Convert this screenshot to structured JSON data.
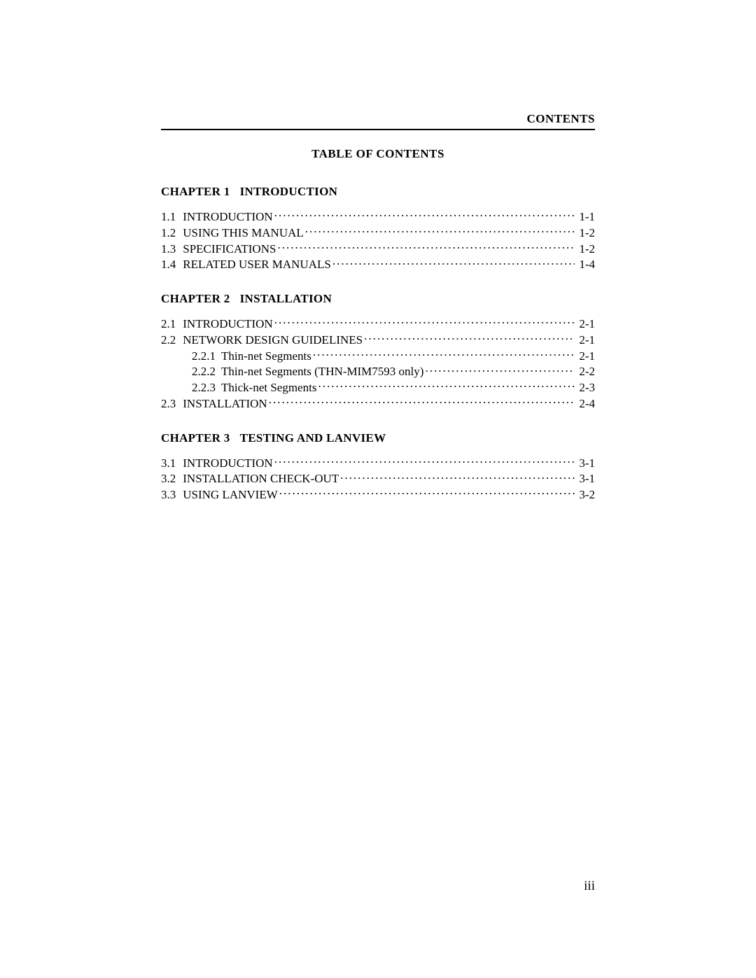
{
  "header_label": "CONTENTS",
  "toc_title": "TABLE OF CONTENTS",
  "page_number": "iii",
  "chapters": [
    {
      "heading_prefix": "CHAPTER 1",
      "heading_title": "INTRODUCTION",
      "entries": [
        {
          "level": 1,
          "num": "1.1",
          "title": "INTRODUCTION",
          "page": "1-1"
        },
        {
          "level": 1,
          "num": "1.2",
          "title": "USING THIS MANUAL",
          "page": "1-2"
        },
        {
          "level": 1,
          "num": "1.3",
          "title": "SPECIFICATIONS",
          "page": "1-2"
        },
        {
          "level": 1,
          "num": "1.4",
          "title": "RELATED USER MANUALS",
          "page": "1-4"
        }
      ]
    },
    {
      "heading_prefix": "CHAPTER 2",
      "heading_title": "INSTALLATION",
      "entries": [
        {
          "level": 1,
          "num": "2.1",
          "title": "INTRODUCTION",
          "page": "2-1"
        },
        {
          "level": 1,
          "num": "2.2",
          "title": "NETWORK DESIGN GUIDELINES",
          "page": "2-1"
        },
        {
          "level": 2,
          "num": "2.2.1",
          "title": "Thin-net Segments",
          "page": "2-1"
        },
        {
          "level": 2,
          "num": "2.2.2",
          "title": "Thin-net Segments (THN-MIM7593 only)",
          "page": "2-2"
        },
        {
          "level": 2,
          "num": "2.2.3",
          "title": "Thick-net Segments",
          "page": "2-3"
        },
        {
          "level": 1,
          "num": "2.3",
          "title": "INSTALLATION",
          "page": "2-4"
        }
      ]
    },
    {
      "heading_prefix": "CHAPTER 3",
      "heading_title": "TESTING AND LANVIEW",
      "entries": [
        {
          "level": 1,
          "num": "3.1",
          "title": "INTRODUCTION",
          "page": "3-1"
        },
        {
          "level": 1,
          "num": "3.2",
          "title": "INSTALLATION CHECK-OUT",
          "page": "3-1"
        },
        {
          "level": 1,
          "num": "3.3",
          "title": "USING LANVIEW",
          "page": "3-2"
        }
      ]
    }
  ]
}
